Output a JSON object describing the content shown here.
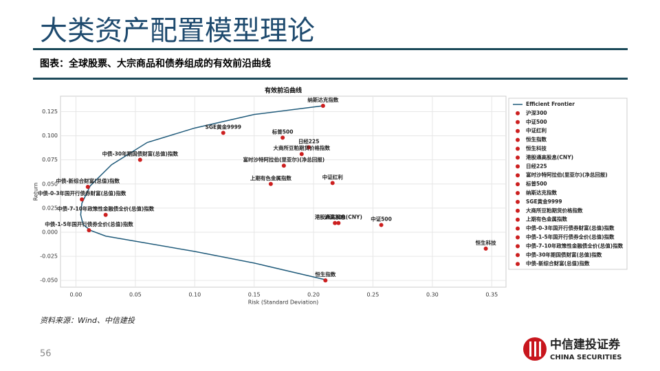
{
  "header": {
    "title": "大类资产配置模型理论",
    "subtitle": "图表：全球股票、大宗商品和债券组成的有效前沿曲线"
  },
  "chart_data": {
    "type": "scatter",
    "title": "有效前沿曲线",
    "x_label": "Risk (Standard Deviation)",
    "y_label": "Return",
    "xlim": [
      -0.013,
      0.362
    ],
    "ylim": [
      -0.057,
      0.141
    ],
    "xticks": [
      {
        "value": 0,
        "label": "0.00"
      },
      {
        "value": 0.05,
        "label": "0.05"
      },
      {
        "value": 0.1,
        "label": "0.10"
      },
      {
        "value": 0.15,
        "label": "0.15"
      },
      {
        "value": 0.2,
        "label": "0.20"
      },
      {
        "value": 0.25,
        "label": "0.25"
      },
      {
        "value": 0.3,
        "label": "0.30"
      },
      {
        "value": 0.35,
        "label": "0.35"
      }
    ],
    "yticks": [
      {
        "value": -0.05,
        "label": "-0.050"
      },
      {
        "value": -0.025,
        "label": "-0.025"
      },
      {
        "value": 0,
        "label": "0.000"
      },
      {
        "value": 0.025,
        "label": "0.025"
      },
      {
        "value": 0.05,
        "label": "0.050"
      },
      {
        "value": 0.075,
        "label": "0.075"
      },
      {
        "value": 0.1,
        "label": "0.100"
      },
      {
        "value": 0.125,
        "label": "0.125"
      }
    ],
    "grid": true,
    "legend": "right",
    "series": [
      {
        "name": "Efficient Frontier",
        "type": "line",
        "color": "#1f5a7a",
        "x": [
          0.208,
          0.15,
          0.1,
          0.06,
          0.03,
          0.012,
          0.005,
          0.004,
          0.006,
          0.012,
          0.025,
          0.1,
          0.15,
          0.209
        ],
        "values": [
          0.131,
          0.122,
          0.108,
          0.093,
          0.07,
          0.048,
          0.03,
          0.018,
          0.008,
          0.002,
          -0.004,
          -0.02,
          -0.032,
          -0.049
        ]
      },
      {
        "name": "沪深300",
        "color": "#cc1f1f",
        "x": [
          0.218
        ],
        "values": [
          0.0095
        ]
      },
      {
        "name": "中证500",
        "color": "#cc1f1f",
        "x": [
          0.257
        ],
        "values": [
          0.0075
        ]
      },
      {
        "name": "中证红利",
        "color": "#cc1f1f",
        "x": [
          0.216
        ],
        "values": [
          0.051
        ]
      },
      {
        "name": "恒生指数",
        "color": "#cc1f1f",
        "x": [
          0.21
        ],
        "values": [
          -0.05
        ]
      },
      {
        "name": "恒生科技",
        "color": "#cc1f1f",
        "x": [
          0.345
        ],
        "values": [
          -0.017
        ]
      },
      {
        "name": "港股通高股息(CNY)",
        "color": "#cc1f1f",
        "x": [
          0.221
        ],
        "values": [
          0.0095
        ]
      },
      {
        "name": "日经225",
        "color": "#cc1f1f",
        "x": [
          0.196
        ],
        "values": [
          0.088
        ]
      },
      {
        "name": "富时沙特阿拉伯(里亚尔)(净总回报)",
        "color": "#cc1f1f",
        "x": [
          0.175
        ],
        "values": [
          0.069
        ]
      },
      {
        "name": "标普500",
        "color": "#cc1f1f",
        "x": [
          0.174
        ],
        "values": [
          0.098
        ]
      },
      {
        "name": "纳斯达克指数",
        "color": "#cc1f1f",
        "x": [
          0.208
        ],
        "values": [
          0.131
        ]
      },
      {
        "name": "SGE黄金9999",
        "color": "#cc1f1f",
        "x": [
          0.124
        ],
        "values": [
          0.103
        ]
      },
      {
        "name": "大商所豆粕期货价格指数",
        "color": "#cc1f1f",
        "x": [
          0.19
        ],
        "values": [
          0.081
        ]
      },
      {
        "name": "上期有色金属指数",
        "color": "#cc1f1f",
        "x": [
          0.164
        ],
        "values": [
          0.05
        ]
      },
      {
        "name": "中债-0-3年国开行债券财富(总值)指数",
        "color": "#cc1f1f",
        "x": [
          0.005
        ],
        "values": [
          0.034
        ]
      },
      {
        "name": "中债-1-5年国开行债券全价(总值)指数",
        "color": "#cc1f1f",
        "x": [
          0.011
        ],
        "values": [
          0.002
        ]
      },
      {
        "name": "中债-7-10年政策性金融债全价(总值)指数",
        "color": "#cc1f1f",
        "x": [
          0.025
        ],
        "values": [
          0.018
        ]
      },
      {
        "name": "中债-30年期国债财富(总值)指数",
        "color": "#cc1f1f",
        "x": [
          0.054
        ],
        "values": [
          0.075
        ]
      },
      {
        "name": "中债-新综合财富(总值)指数",
        "color": "#cc1f1f",
        "x": [
          0.01
        ],
        "values": [
          0.047
        ]
      }
    ]
  },
  "footer": {
    "source": "资料来源：Wind、中信建投",
    "page": "56",
    "logo_cn": "中信建投证券",
    "logo_en": "CHINA SECURITIES"
  }
}
